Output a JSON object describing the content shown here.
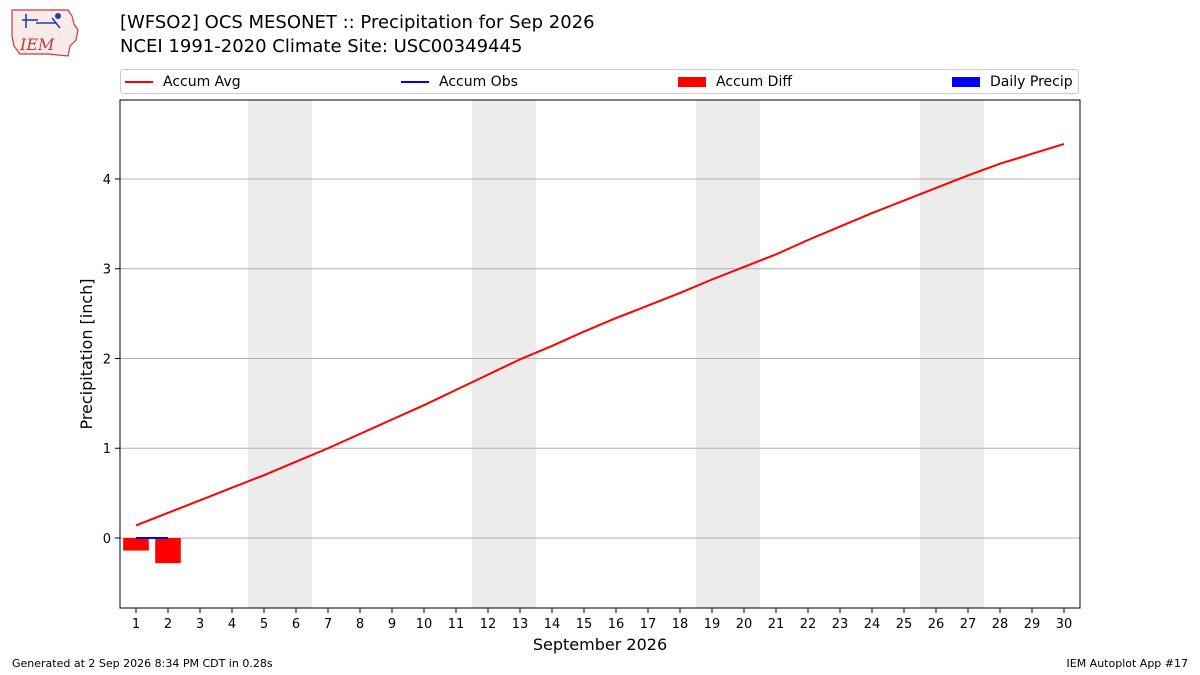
{
  "header": {
    "title_line1": "[WFSO2] OCS MESONET :: Precipitation for Sep 2026",
    "title_line2": "NCEI 1991-2020 Climate Site: USC00349445",
    "logo_text": "IEM"
  },
  "footer": {
    "left": "Generated at 2 Sep 2026 8:34 PM CDT in 0.28s",
    "right": "IEM Autoplot App #17"
  },
  "chart_data": {
    "type": "line",
    "xlabel": "September 2026",
    "ylabel": "Precipitation [inch]",
    "x": [
      1,
      2,
      3,
      4,
      5,
      6,
      7,
      8,
      9,
      10,
      11,
      12,
      13,
      14,
      15,
      16,
      17,
      18,
      19,
      20,
      21,
      22,
      23,
      24,
      25,
      26,
      27,
      28,
      29,
      30
    ],
    "xlim": [
      0.5,
      30.5
    ],
    "ylim": [
      -0.78,
      4.88
    ],
    "yticks": [
      0,
      1,
      2,
      3,
      4
    ],
    "grid": "horizontal",
    "weekend_shading": [
      [
        4.5,
        6.5
      ],
      [
        11.5,
        13.5
      ],
      [
        18.5,
        20.5
      ],
      [
        25.5,
        27.5
      ]
    ],
    "legend": [
      {
        "label": "Accum Avg",
        "kind": "line",
        "color": "#ff0000"
      },
      {
        "label": "Accum Obs",
        "kind": "line",
        "color": "#0000ff"
      },
      {
        "label": "Accum Diff",
        "kind": "bar",
        "color": "#ff0000"
      },
      {
        "label": "Daily Precip",
        "kind": "bar",
        "color": "#0000ff"
      }
    ],
    "series": [
      {
        "name": "Accum Avg",
        "color": "#ff0000",
        "values": [
          0.14,
          0.28,
          0.42,
          0.56,
          0.7,
          0.85,
          1.0,
          1.16,
          1.32,
          1.48,
          1.65,
          1.82,
          1.99,
          2.14,
          2.3,
          2.45,
          2.59,
          2.73,
          2.88,
          3.02,
          3.16,
          3.32,
          3.47,
          3.62,
          3.76,
          3.9,
          4.04,
          4.17,
          4.28,
          4.39
        ]
      },
      {
        "name": "Accum Obs",
        "color": "#0000ff",
        "x": [
          1,
          2
        ],
        "values": [
          0.0,
          0.0
        ]
      },
      {
        "name": "Accum Diff",
        "color": "#ff0000",
        "x": [
          1,
          2
        ],
        "values": [
          -0.14,
          -0.28
        ]
      },
      {
        "name": "Daily Precip",
        "color": "#0000ff",
        "x": [
          1,
          2
        ],
        "values": [
          0.0,
          0.0
        ]
      }
    ]
  }
}
